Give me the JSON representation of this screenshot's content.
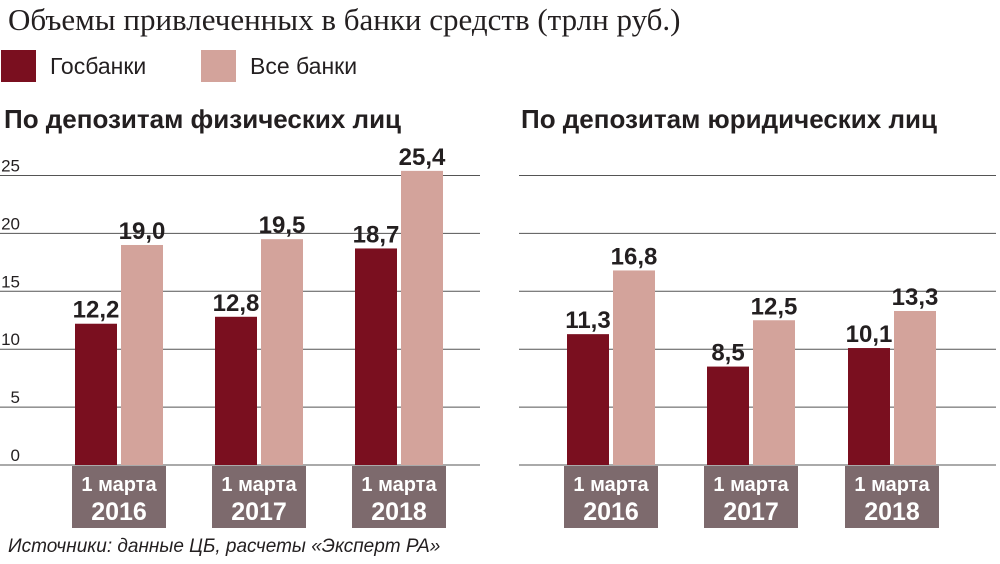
{
  "title": "Объемы привлеченных в банки средств (трлн руб.)",
  "legend": [
    {
      "label": "Госбанки",
      "color": "#7a0f1f"
    },
    {
      "label": "Все банки",
      "color": "#d3a39b"
    }
  ],
  "source": "Источники: данные ЦБ, расчеты «Эксперт РА»",
  "colors": {
    "gosbanki": "#7a0f1f",
    "vse_banki": "#d3a39b",
    "category_box": "#7d6a6d",
    "grid": "#555555"
  },
  "chart_data": [
    {
      "type": "bar",
      "title": "По депозитам физических лиц",
      "categories": [
        [
          "1 марта",
          "2016"
        ],
        [
          "1 марта",
          "2017"
        ],
        [
          "1 марта",
          "2018"
        ]
      ],
      "series": [
        {
          "name": "Госбанки",
          "values": [
            12.2,
            12.8,
            18.7
          ],
          "labels": [
            "12,2",
            "12,8",
            "18,7"
          ]
        },
        {
          "name": "Все банки",
          "values": [
            19.0,
            19.5,
            25.4
          ],
          "labels": [
            "19,0",
            "19,5",
            "25,4"
          ]
        }
      ],
      "yticks": [
        "0",
        "5",
        "10",
        "15",
        "20",
        "25"
      ],
      "ylim": [
        0,
        25
      ],
      "grid": true
    },
    {
      "type": "bar",
      "title": "По депозитам юридических лиц",
      "categories": [
        [
          "1 марта",
          "2016"
        ],
        [
          "1 марта",
          "2017"
        ],
        [
          "1 марта",
          "2018"
        ]
      ],
      "series": [
        {
          "name": "Госбанки",
          "values": [
            11.3,
            8.5,
            10.1
          ],
          "labels": [
            "11,3",
            "8,5",
            "10,1"
          ]
        },
        {
          "name": "Все банки",
          "values": [
            16.8,
            12.5,
            13.3
          ],
          "labels": [
            "16,8",
            "12,5",
            "13,3"
          ]
        }
      ],
      "ylim": [
        0,
        25
      ],
      "grid": true
    }
  ]
}
